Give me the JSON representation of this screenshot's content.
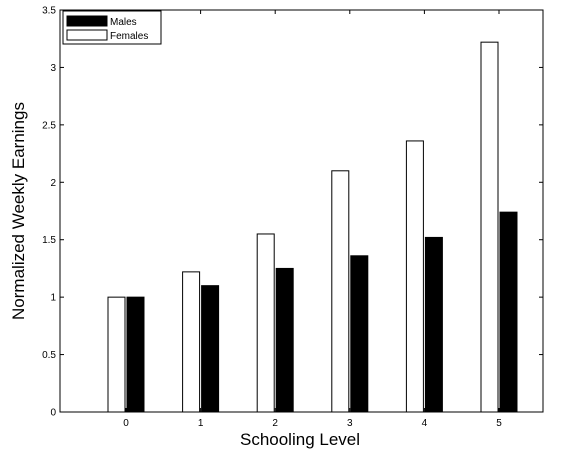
{
  "chart_data": {
    "type": "bar",
    "xlabel": "Schooling Level",
    "ylabel": "Normalized Weekly Earnings",
    "categories": [
      "0",
      "1",
      "2",
      "3",
      "4",
      "5"
    ],
    "ylim": [
      0,
      3.5
    ],
    "yticks": [
      "0",
      "0.5",
      "1",
      "1.5",
      "2",
      "2.5",
      "3",
      "3.5"
    ],
    "legend_position": "top-left",
    "grid": false,
    "series": [
      {
        "name": "Males",
        "color": "#000000",
        "values": [
          1.0,
          1.1,
          1.25,
          1.36,
          1.52,
          1.74
        ]
      },
      {
        "name": "Females",
        "color": "#ffffff",
        "values": [
          1.0,
          1.22,
          1.55,
          2.1,
          2.36,
          3.22
        ]
      }
    ]
  }
}
